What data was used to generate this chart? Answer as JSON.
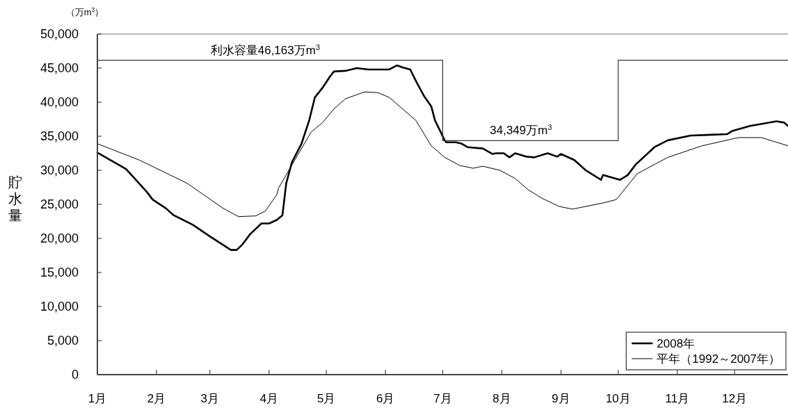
{
  "chart_data": {
    "type": "line",
    "ylabel": "貯水量",
    "annotations": [
      "（万m$^{3}$）",
      {
        "text": "利水容量46,163万m$^{3}$",
        "x": "--03-30",
        "y": 46163
      },
      {
        "text": "34,349万m$^{3}$",
        "x": "--08-11",
        "y": 34349
      }
    ],
    "xlim": [
      "--01-01",
      "--12-29"
    ],
    "xticks": [
      {
        "value": "--01-01",
        "label": "1月"
      },
      {
        "value": "--02-01",
        "label": "2月"
      },
      {
        "value": "--03-01",
        "label": "3月"
      },
      {
        "value": "--04-01",
        "label": "4月"
      },
      {
        "value": "--05-01",
        "label": "5月"
      },
      {
        "value": "--06-01",
        "label": "6月"
      },
      {
        "value": "--07-01",
        "label": "7月"
      },
      {
        "value": "--08-01",
        "label": "8月"
      },
      {
        "value": "--09-01",
        "label": "9月"
      },
      {
        "value": "--10-01",
        "label": "10月"
      },
      {
        "value": "--11-01",
        "label": "11月"
      },
      {
        "value": "--12-01",
        "label": "12月"
      }
    ],
    "ylim": [
      0,
      50000
    ],
    "yticks": [
      {
        "value": 0,
        "label": "0"
      },
      {
        "value": 5000,
        "label": "5,000"
      },
      {
        "value": 10000,
        "label": "10,000"
      },
      {
        "value": 15000,
        "label": "15,000"
      },
      {
        "value": 20000,
        "label": "20,000"
      },
      {
        "value": 25000,
        "label": "25,000"
      },
      {
        "value": 30000,
        "label": "30,000"
      },
      {
        "value": 35000,
        "label": "35,000"
      },
      {
        "value": 40000,
        "label": "40,000"
      },
      {
        "value": 45000,
        "label": "45,000"
      },
      {
        "value": 50000,
        "label": "50,000"
      }
    ],
    "legend": "bottom right",
    "series": [
      {
        "name": "2008年",
        "color": "#000000",
        "x": [
          "--01-01",
          "--01-16",
          "--01-27",
          "--01-30",
          "--02-06",
          "--02-10",
          "--02-20",
          "--03-01",
          "--03-12",
          "--03-15",
          "--03-18",
          "--03-22",
          "--03-28",
          "--04-01",
          "--04-05",
          "--04-08",
          "--04-10",
          "--04-13",
          "--04-18",
          "--04-22",
          "--04-25",
          "--04-29",
          "--05-03",
          "--05-05",
          "--05-11",
          "--05-17",
          "--05-23",
          "--05-29",
          "--06-03",
          "--06-07",
          "--06-10",
          "--06-14",
          "--06-17",
          "--06-21",
          "--06-25",
          "--06-27",
          "--06-30",
          "--07-02",
          "--07-03",
          "--07-08",
          "--07-11",
          "--07-14",
          "--07-22",
          "--07-27",
          "--07-29",
          "--08-02",
          "--08-05",
          "--08-08",
          "--08-14",
          "--08-18",
          "--08-25",
          "--08-30",
          "--09-01",
          "--09-08",
          "--09-14",
          "--09-22",
          "--09-23",
          "--10-02",
          "--10-06",
          "--10-10",
          "--10-20",
          "--10-27",
          "--11-08",
          "--11-27",
          "--11-30",
          "--12-09",
          "--12-23",
          "--12-27",
          "--12-29"
        ],
        "values": [
          32600,
          30200,
          26800,
          25700,
          24400,
          23400,
          22000,
          20300,
          18300,
          18300,
          19100,
          20600,
          22200,
          22200,
          22700,
          23400,
          28100,
          31200,
          33900,
          37300,
          40700,
          42100,
          43800,
          44500,
          44600,
          45000,
          44800,
          44800,
          44800,
          45400,
          45100,
          44800,
          43100,
          41000,
          39400,
          37300,
          35600,
          34400,
          34100,
          34100,
          33900,
          33400,
          33200,
          32400,
          32500,
          32500,
          31900,
          32500,
          32000,
          31900,
          32500,
          32000,
          32400,
          31500,
          30000,
          28600,
          29300,
          28600,
          29300,
          30800,
          33400,
          34400,
          35100,
          35300,
          35800,
          36500,
          37200,
          37000,
          36500
        ]
      },
      {
        "name": "平年（1992～2007年）",
        "color": "#000000",
        "x": [
          "--01-01",
          "--01-23",
          "--02-17",
          "--03-08",
          "--03-16",
          "--03-25",
          "--03-30",
          "--04-05",
          "--04-06",
          "--04-13",
          "--04-23",
          "--04-29",
          "--05-05",
          "--05-11",
          "--05-21",
          "--05-28",
          "--06-03",
          "--06-10",
          "--06-17",
          "--06-25",
          "--07-02",
          "--07-10",
          "--07-17",
          "--07-22",
          "--07-31",
          "--08-08",
          "--08-15",
          "--08-22",
          "--08-31",
          "--09-07",
          "--09-23",
          "--09-30",
          "--10-11",
          "--10-27",
          "--11-14",
          "--12-03",
          "--12-15",
          "--12-22",
          "--12-29"
        ],
        "values": [
          33900,
          31500,
          28100,
          24400,
          23200,
          23300,
          24000,
          26400,
          27400,
          30800,
          35600,
          37000,
          39000,
          40500,
          41500,
          41400,
          40700,
          39000,
          37300,
          33600,
          31900,
          30700,
          30300,
          30600,
          30000,
          28800,
          27100,
          25900,
          24700,
          24300,
          25200,
          25700,
          29500,
          31900,
          33600,
          34800,
          34800,
          34200,
          33600
        ]
      },
      {
        "color": "#333333",
        "x": [
          "--01-01",
          "--07-01",
          "--07-01",
          "--10-01",
          "--10-01",
          "--12-29"
        ],
        "values": [
          46163,
          46163,
          34349,
          34349,
          46163,
          46163
        ]
      }
    ]
  }
}
